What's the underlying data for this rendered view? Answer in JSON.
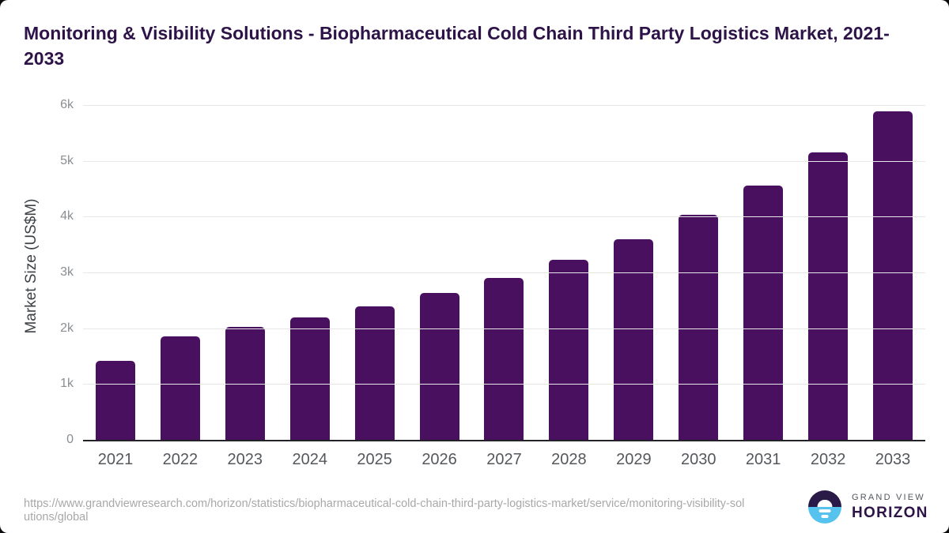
{
  "header": {
    "title": "Monitoring & Visibility Solutions - Biopharmaceutical Cold Chain Third Party Logistics Market, 2021-2033"
  },
  "chart_data": {
    "type": "bar",
    "title": "Monitoring & Visibility Solutions - Biopharmaceutical Cold Chain Third Party Logistics Market, 2021-2033",
    "categories": [
      "2021",
      "2022",
      "2023",
      "2024",
      "2025",
      "2026",
      "2027",
      "2028",
      "2029",
      "2030",
      "2031",
      "2032",
      "2033"
    ],
    "values": [
      1420,
      1850,
      2020,
      2200,
      2390,
      2630,
      2900,
      3220,
      3590,
      4040,
      4550,
      5150,
      5880
    ],
    "xlabel": "",
    "ylabel": "Market Size (US$M)",
    "ylim": [
      0,
      6000
    ],
    "yticks": [
      {
        "value": 0,
        "label": "0"
      },
      {
        "value": 1000,
        "label": "1k"
      },
      {
        "value": 2000,
        "label": "2k"
      },
      {
        "value": 3000,
        "label": "3k"
      },
      {
        "value": 4000,
        "label": "4k"
      },
      {
        "value": 5000,
        "label": "5k"
      },
      {
        "value": 6000,
        "label": "6k"
      }
    ],
    "grid": "horizontal",
    "legend": false,
    "bar_color": "#4a1060"
  },
  "footer": {
    "source_url": "https://www.grandviewresearch.com/horizon/statistics/biopharmaceutical-cold-chain-third-party-logistics-market/service/monitoring-visibility-solutions/global",
    "logo": {
      "top": "GRAND VIEW",
      "bottom": "HORIZON"
    }
  },
  "colors": {
    "bar": "#4a1060",
    "title": "#2d1347",
    "gridline": "#e7e7e7",
    "axis_line": "#222228",
    "y_tick": "#8a8e92",
    "x_tick": "#54585c",
    "url_text": "#a8a8a8",
    "logo_blue": "#56c3ef",
    "logo_purple": "#2a1a47"
  }
}
